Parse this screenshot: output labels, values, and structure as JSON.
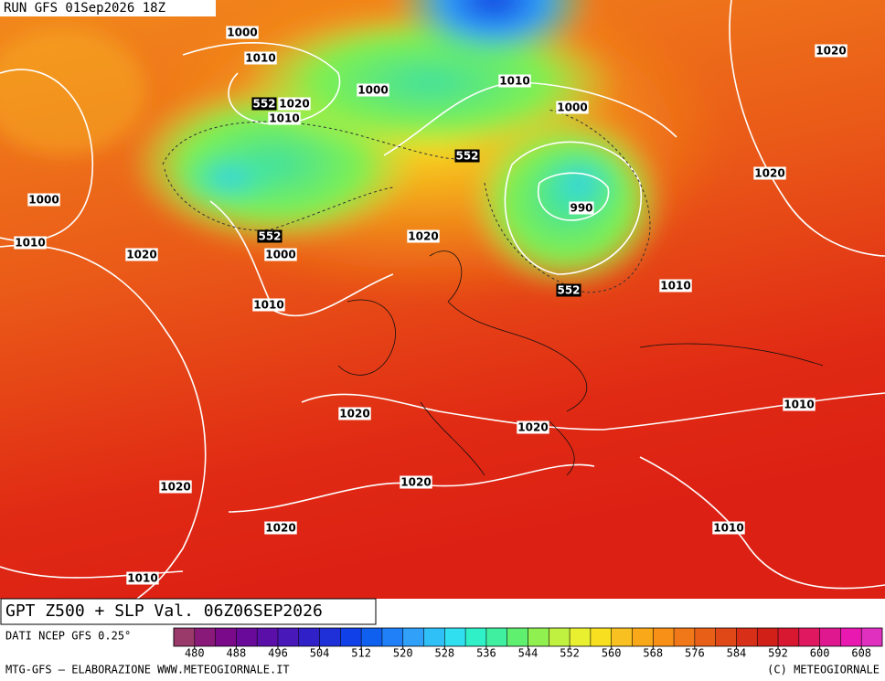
{
  "run_label": "RUN GFS 01Sep2026 18Z",
  "map_title": "GPT Z500 + SLP Val. 06Z06SEP2026",
  "source": "DATI NCEP GFS 0.25°",
  "footer_left": "MTG-GFS — ELABORAZIONE WWW.METEOGIORNALE.IT",
  "footer_right": "(C) METEOGIORNALE",
  "slp_labels": [
    1000,
    1010,
    1020,
    1010,
    1000,
    1010,
    1000,
    1020,
    1020,
    1000,
    990,
    1000,
    1020,
    1010,
    1020,
    1010,
    1010,
    1010,
    1020,
    1020,
    1020,
    1020,
    1020,
    1010,
    1010
  ],
  "z500_labels": [
    552,
    552,
    552,
    552
  ],
  "colorbar": {
    "range": [
      476,
      612
    ],
    "ticks": [
      480,
      488,
      496,
      504,
      512,
      520,
      528,
      536,
      544,
      552,
      560,
      568,
      576,
      584,
      592,
      600,
      608
    ],
    "colors": [
      "#9a3a6a",
      "#8a1a7a",
      "#7a0a8a",
      "#6a0a9a",
      "#5a10a8",
      "#4818b8",
      "#3020c8",
      "#2030d8",
      "#1040e8",
      "#1060f0",
      "#2080f8",
      "#30a0f8",
      "#30c0f8",
      "#30e0f0",
      "#30f0c8",
      "#40f0a0",
      "#60f070",
      "#90f050",
      "#c0f040",
      "#e8f030",
      "#f8e020",
      "#f8c020",
      "#f8a818",
      "#f89018",
      "#f07818",
      "#e86018",
      "#e04818",
      "#d83018",
      "#d02018",
      "#d81830",
      "#e01860",
      "#e01890",
      "#e818b0",
      "#e030c0"
    ]
  }
}
